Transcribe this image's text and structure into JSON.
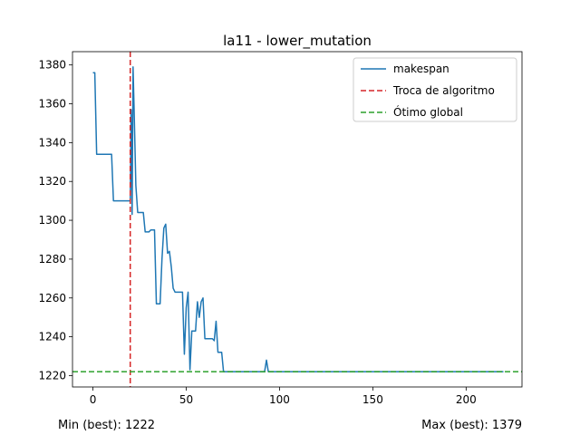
{
  "chart_data": {
    "type": "line",
    "title": "la11 - lower_mutation",
    "xlabel": "",
    "ylabel": "",
    "xlim": [
      -10.95,
      229.95
    ],
    "ylim": [
      1214.15,
      1386.85
    ],
    "xticks": [
      0,
      50,
      100,
      150,
      200
    ],
    "yticks": [
      1220,
      1240,
      1260,
      1280,
      1300,
      1320,
      1340,
      1360,
      1380
    ],
    "grid": false,
    "legend_position": "top-right",
    "series": [
      {
        "name": "makespan",
        "color": "#1f77b4",
        "style": "solid",
        "points": [
          [
            0,
            1376
          ],
          [
            1,
            1376
          ],
          [
            2,
            1334
          ],
          [
            3,
            1334
          ],
          [
            4,
            1334
          ],
          [
            5,
            1334
          ],
          [
            6,
            1334
          ],
          [
            7,
            1334
          ],
          [
            8,
            1334
          ],
          [
            9,
            1334
          ],
          [
            10,
            1334
          ],
          [
            11,
            1310
          ],
          [
            12,
            1310
          ],
          [
            13,
            1310
          ],
          [
            14,
            1310
          ],
          [
            15,
            1310
          ],
          [
            16,
            1310
          ],
          [
            17,
            1310
          ],
          [
            18,
            1310
          ],
          [
            19,
            1310
          ],
          [
            20,
            1310
          ],
          [
            20.5,
            1357
          ],
          [
            21,
            1303
          ],
          [
            21.5,
            1379
          ],
          [
            22,
            1360
          ],
          [
            23,
            1318
          ],
          [
            24,
            1304
          ],
          [
            25,
            1304
          ],
          [
            26,
            1304
          ],
          [
            27,
            1304
          ],
          [
            28,
            1294
          ],
          [
            29,
            1294
          ],
          [
            30,
            1294
          ],
          [
            31,
            1295
          ],
          [
            32,
            1295
          ],
          [
            33,
            1295
          ],
          [
            34,
            1257
          ],
          [
            35,
            1257
          ],
          [
            36,
            1257
          ],
          [
            37,
            1280
          ],
          [
            38,
            1296
          ],
          [
            39,
            1298
          ],
          [
            40,
            1283
          ],
          [
            41,
            1284
          ],
          [
            42,
            1276
          ],
          [
            43,
            1265
          ],
          [
            44,
            1263
          ],
          [
            45,
            1263
          ],
          [
            46,
            1263
          ],
          [
            47,
            1263
          ],
          [
            48,
            1263
          ],
          [
            49,
            1231
          ],
          [
            50,
            1255
          ],
          [
            51,
            1263
          ],
          [
            52,
            1223
          ],
          [
            53,
            1243
          ],
          [
            54,
            1243
          ],
          [
            55,
            1243
          ],
          [
            56,
            1258
          ],
          [
            57,
            1250
          ],
          [
            58,
            1258
          ],
          [
            59,
            1260
          ],
          [
            60,
            1239
          ],
          [
            61,
            1239
          ],
          [
            62,
            1239
          ],
          [
            63,
            1239
          ],
          [
            64,
            1239
          ],
          [
            65,
            1238
          ],
          [
            66,
            1248
          ],
          [
            67,
            1232
          ],
          [
            68,
            1232
          ],
          [
            69,
            1232
          ],
          [
            70,
            1222
          ],
          [
            75,
            1222
          ],
          [
            80,
            1222
          ],
          [
            85,
            1222
          ],
          [
            90,
            1222
          ],
          [
            92,
            1222
          ],
          [
            93,
            1228
          ],
          [
            94,
            1222
          ],
          [
            100,
            1222
          ],
          [
            150,
            1222
          ],
          [
            200,
            1222
          ],
          [
            220,
            1222
          ]
        ]
      },
      {
        "name": "Troca de algoritmo",
        "color": "#d62728",
        "style": "dashed",
        "orientation": "vertical",
        "x": 20
      },
      {
        "name": "Ótimo global",
        "color": "#2ca02c",
        "style": "dashed",
        "orientation": "horizontal",
        "y": 1222
      }
    ]
  },
  "footer": {
    "min_label": "Min (best): 1222",
    "max_label": "Max (best): 1379"
  }
}
